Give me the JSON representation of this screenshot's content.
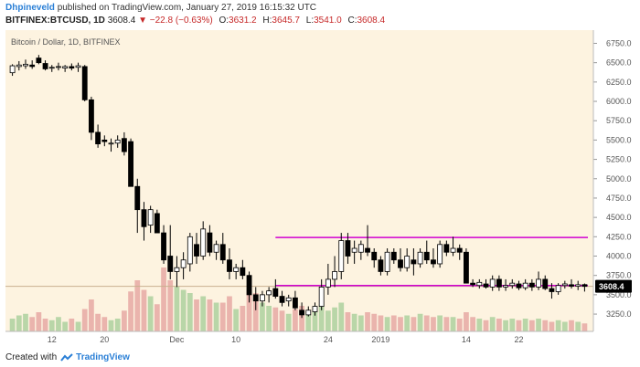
{
  "header": {
    "author": "Dhpineveld",
    "published_text": "published on TradingView.com, January 27, 2019 16:15:32 UTC",
    "symbol": "BITFINEX:BTCUSD, 1D",
    "last": "3608.4",
    "change": "−22.8 (−0.63%)",
    "open_label": "O:",
    "open": "3631.2",
    "high_label": "H:",
    "high": "3645.7",
    "low_label": "L:",
    "low": "3541.0",
    "close_label": "C:",
    "close": "3608.4"
  },
  "footer": {
    "created_with": "Created with",
    "brand": "TradingView"
  },
  "colors": {
    "background": "#fdf3e0",
    "candle_up_fill": "#ffffff",
    "candle_down_fill": "#000000",
    "horizontal_line": "#d100d1",
    "price_line": "#c9b08f",
    "volume_up": "#b9d6a8",
    "volume_down": "#eab4ad"
  },
  "chart_data": {
    "type": "candlestick",
    "title": "Bitcoin / Dollar, 1D, BITFINEX",
    "y_ticks": [
      "6750.0",
      "6500.0",
      "6250.0",
      "6000.0",
      "5750.0",
      "5500.0",
      "5250.0",
      "5000.0",
      "4750.0",
      "4500.0",
      "4250.0",
      "4000.0",
      "3750.0",
      "3500.0",
      "3250.0"
    ],
    "ylim": [
      3050,
      6850
    ],
    "x_ticks": [
      {
        "label": "12",
        "day": 6
      },
      {
        "label": "20",
        "day": 14
      },
      {
        "label": "Dec",
        "day": 25
      },
      {
        "label": "10",
        "day": 34
      },
      {
        "label": "24",
        "day": 48
      },
      {
        "label": "2019",
        "day": 56
      },
      {
        "label": "14",
        "day": 69
      },
      {
        "label": "22",
        "day": 77
      }
    ],
    "current_price_label": "3608.4",
    "current_price": 3608.4,
    "horizontal_lines": [
      4240,
      3620
    ],
    "horizontal_line_start_day": 40,
    "ohlc": [
      [
        6370,
        6480,
        6330,
        6460
      ],
      [
        6450,
        6520,
        6400,
        6470
      ],
      [
        6460,
        6540,
        6420,
        6480
      ],
      [
        6470,
        6530,
        6420,
        6450
      ],
      [
        6560,
        6600,
        6480,
        6500
      ],
      [
        6490,
        6530,
        6400,
        6420
      ],
      [
        6430,
        6470,
        6380,
        6440
      ],
      [
        6440,
        6500,
        6400,
        6450
      ],
      [
        6430,
        6470,
        6380,
        6450
      ],
      [
        6450,
        6490,
        6400,
        6430
      ],
      [
        6440,
        6500,
        6380,
        6460
      ],
      [
        6450,
        6470,
        6000,
        6020
      ],
      [
        6020,
        6060,
        5500,
        5600
      ],
      [
        5600,
        5700,
        5400,
        5450
      ],
      [
        5500,
        5560,
        5420,
        5480
      ],
      [
        5450,
        5520,
        5350,
        5460
      ],
      [
        5460,
        5560,
        5400,
        5500
      ],
      [
        5520,
        5600,
        5300,
        5350
      ],
      [
        5480,
        5520,
        4900,
        4900
      ],
      [
        4900,
        5000,
        4300,
        4600
      ],
      [
        4600,
        4700,
        4200,
        4380
      ],
      [
        4400,
        4650,
        4300,
        4600
      ],
      [
        4550,
        4600,
        4300,
        4300
      ],
      [
        4300,
        4400,
        3900,
        3950
      ],
      [
        4000,
        4400,
        3700,
        3800
      ],
      [
        3800,
        4000,
        3600,
        3850
      ],
      [
        3850,
        4050,
        3700,
        3950
      ],
      [
        3900,
        4300,
        3800,
        4250
      ],
      [
        4150,
        4300,
        3900,
        4000
      ],
      [
        4000,
        4450,
        3950,
        4350
      ],
      [
        4300,
        4400,
        4000,
        4050
      ],
      [
        4050,
        4200,
        3950,
        4150
      ],
      [
        4150,
        4300,
        3900,
        3950
      ],
      [
        3950,
        4100,
        3700,
        3800
      ],
      [
        3800,
        3900,
        3700,
        3850
      ],
      [
        3850,
        3950,
        3700,
        3750
      ],
      [
        3750,
        3800,
        3400,
        3500
      ],
      [
        3500,
        3600,
        3300,
        3420
      ],
      [
        3420,
        3550,
        3350,
        3500
      ],
      [
        3500,
        3600,
        3400,
        3550
      ],
      [
        3580,
        3700,
        3450,
        3480
      ],
      [
        3480,
        3550,
        3350,
        3400
      ],
      [
        3420,
        3500,
        3350,
        3460
      ],
      [
        3460,
        3550,
        3300,
        3330
      ],
      [
        3300,
        3400,
        3200,
        3240
      ],
      [
        3240,
        3350,
        3220,
        3300
      ],
      [
        3280,
        3400,
        3230,
        3350
      ],
      [
        3350,
        3700,
        3300,
        3600
      ],
      [
        3600,
        3900,
        3500,
        3700
      ],
      [
        3700,
        4000,
        3600,
        3800
      ],
      [
        3800,
        4300,
        3700,
        4200
      ],
      [
        4200,
        4300,
        3900,
        4000
      ],
      [
        4050,
        4200,
        3900,
        4100
      ],
      [
        4050,
        4200,
        3950,
        4150
      ],
      [
        4100,
        4400,
        4000,
        4050
      ],
      [
        4050,
        4100,
        3850,
        3950
      ],
      [
        3950,
        4000,
        3750,
        3800
      ],
      [
        3800,
        4100,
        3750,
        4050
      ],
      [
        4050,
        4100,
        3900,
        3950
      ],
      [
        3950,
        4100,
        3800,
        3850
      ],
      [
        3850,
        4100,
        3800,
        4000
      ],
      [
        3950,
        4100,
        3750,
        3900
      ],
      [
        3900,
        4100,
        3850,
        4050
      ],
      [
        4050,
        4200,
        3900,
        3950
      ],
      [
        3950,
        4100,
        3850,
        3900
      ],
      [
        3900,
        4200,
        3850,
        4150
      ],
      [
        4150,
        4200,
        4000,
        4050
      ],
      [
        4050,
        4250,
        4000,
        4100
      ],
      [
        4100,
        4150,
        3950,
        4050
      ],
      [
        4050,
        4100,
        3650,
        3650
      ],
      [
        3650,
        3700,
        3600,
        3630
      ],
      [
        3620,
        3700,
        3580,
        3660
      ],
      [
        3640,
        3700,
        3580,
        3600
      ],
      [
        3600,
        3750,
        3550,
        3700
      ],
      [
        3700,
        3750,
        3550,
        3600
      ],
      [
        3600,
        3700,
        3550,
        3620
      ],
      [
        3620,
        3700,
        3580,
        3650
      ],
      [
        3640,
        3680,
        3560,
        3590
      ],
      [
        3590,
        3700,
        3560,
        3650
      ],
      [
        3650,
        3700,
        3550,
        3600
      ],
      [
        3600,
        3800,
        3560,
        3700
      ],
      [
        3700,
        3750,
        3560,
        3580
      ],
      [
        3580,
        3650,
        3450,
        3540
      ],
      [
        3540,
        3650,
        3500,
        3620
      ],
      [
        3620,
        3680,
        3580,
        3640
      ],
      [
        3630,
        3700,
        3580,
        3610
      ],
      [
        3610,
        3680,
        3560,
        3630
      ],
      [
        3631.2,
        3645.7,
        3541.0,
        3608.4
      ]
    ],
    "volume": [
      8,
      10,
      11,
      9,
      12,
      8,
      7,
      9,
      6,
      8,
      6,
      14,
      20,
      11,
      9,
      7,
      8,
      13,
      25,
      32,
      26,
      22,
      17,
      40,
      32,
      28,
      26,
      24,
      20,
      22,
      20,
      18,
      18,
      22,
      14,
      16,
      26,
      24,
      18,
      16,
      15,
      13,
      11,
      14,
      16,
      12,
      14,
      17,
      13,
      15,
      18,
      12,
      11,
      10,
      12,
      11,
      10,
      9,
      10,
      9,
      10,
      9,
      11,
      10,
      9,
      10,
      9,
      9,
      8,
      12,
      9,
      8,
      7,
      9,
      8,
      7,
      8,
      7,
      8,
      7,
      8,
      7,
      6,
      7,
      6,
      7,
      6,
      5
    ]
  }
}
